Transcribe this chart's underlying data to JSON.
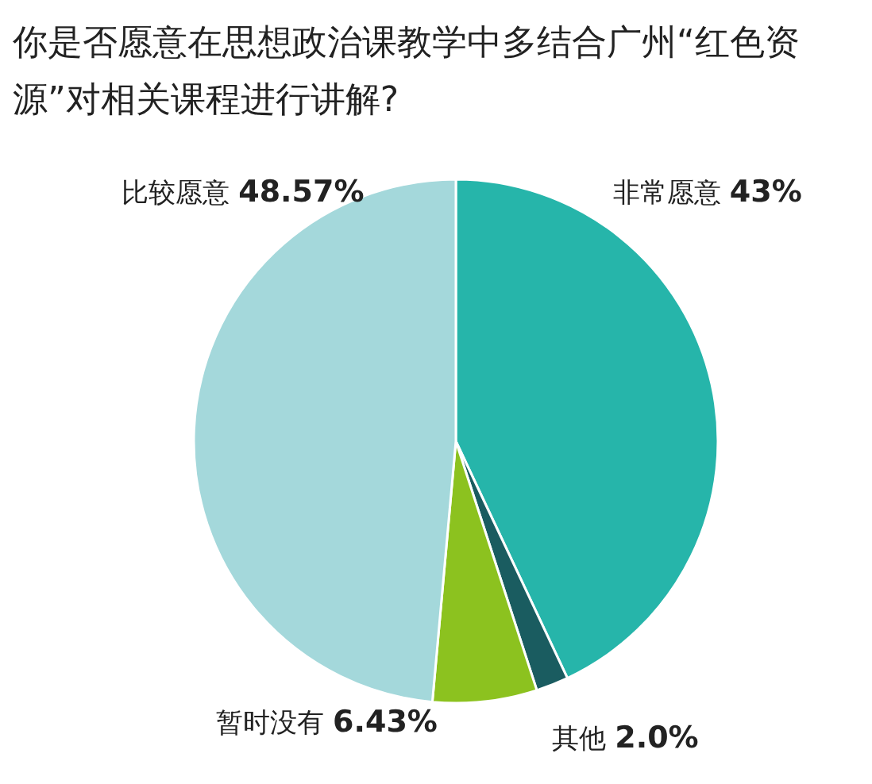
{
  "chart_data": {
    "type": "pie",
    "title": "你是否愿意在思想政治课教学中多结合广州“红色资源”对相关课程进行讲解?",
    "categories": [
      "非常愿意",
      "其他",
      "暂时没有",
      "比较愿意"
    ],
    "values": [
      43,
      2.0,
      6.43,
      48.57
    ],
    "value_labels": [
      "43%",
      "2.0%",
      "6.43%",
      "48.57%"
    ],
    "colors": [
      "#26b5aa",
      "#1a5c60",
      "#8cc21f",
      "#a4d8db"
    ]
  }
}
